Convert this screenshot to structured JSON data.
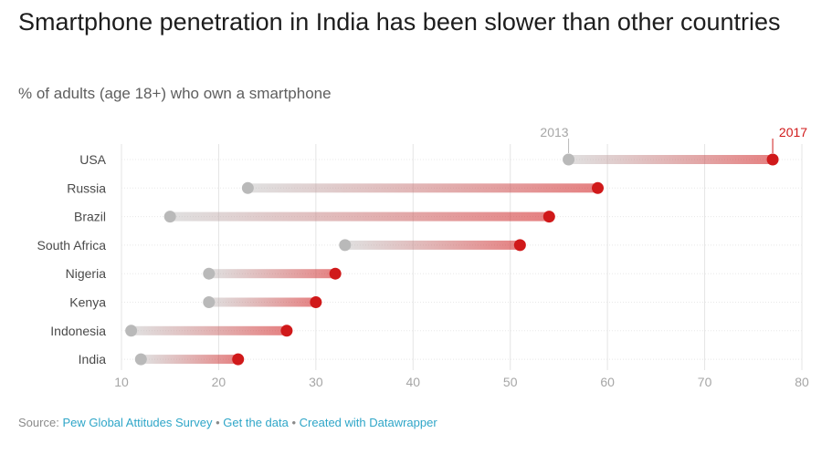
{
  "title": "Smartphone penetration in India has been slower than other countries",
  "subtitle": "% of adults (age 18+) who own a smartphone",
  "source": {
    "prefix": "Source:",
    "survey": "Pew Global Attitudes Survey",
    "separator": "•",
    "get_data": "Get the data",
    "created_with": "Created with Datawrapper"
  },
  "colors": {
    "start": "#b9b9b9",
    "end": "#d0191a",
    "grid": "#e4e4e4",
    "axis_text": "#a6a6a6",
    "label_text": "#4a4a4a"
  },
  "chart_data": {
    "type": "dumbbell",
    "series": [
      {
        "name": "2013",
        "color": "#b9b9b9"
      },
      {
        "name": "2017",
        "color": "#d0191a"
      }
    ],
    "categories": [
      "USA",
      "Russia",
      "Brazil",
      "South Africa",
      "Nigeria",
      "Kenya",
      "Indonesia",
      "India"
    ],
    "start_values": [
      56,
      23,
      15,
      33,
      19,
      19,
      11,
      12
    ],
    "end_values": [
      77,
      59,
      54,
      51,
      32,
      30,
      27,
      22
    ],
    "xlim": [
      10,
      80
    ],
    "xticks": [
      10,
      20,
      30,
      40,
      50,
      60,
      70,
      80
    ],
    "grid": true
  }
}
